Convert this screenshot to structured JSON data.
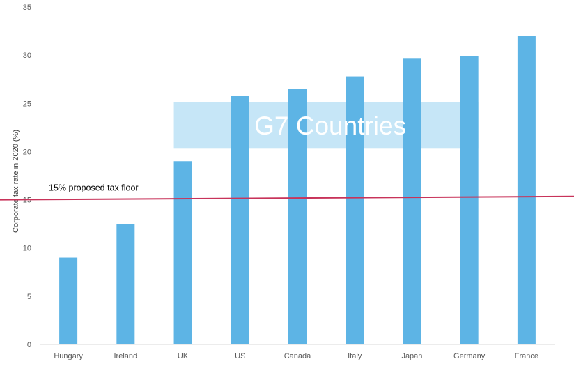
{
  "chart_data": {
    "type": "bar",
    "categories": [
      "Hungary",
      "Ireland",
      "UK",
      "US",
      "Canada",
      "Italy",
      "Japan",
      "Germany",
      "France"
    ],
    "values": [
      9.0,
      12.5,
      19.0,
      25.8,
      26.5,
      27.8,
      29.7,
      29.9,
      32.0
    ],
    "ylabel": "Corporate tax rate in 2020 (%)",
    "xlabel": "",
    "ylim": [
      0,
      35
    ],
    "yticks": [
      0,
      5,
      10,
      15,
      20,
      25,
      30,
      35
    ],
    "grid": false,
    "legend": "none",
    "bar_color": "#5DB4E5",
    "reference_line": {
      "label": "15% proposed tax floor",
      "y_start": 15.0,
      "y_end": 15.35,
      "color": "#C8335A"
    },
    "annotation_box": {
      "label": "G7 Countries",
      "from_category": "UK",
      "to_category": "Germany",
      "y_range": [
        20.3,
        25.1
      ],
      "color": "#C6E6F7"
    }
  }
}
